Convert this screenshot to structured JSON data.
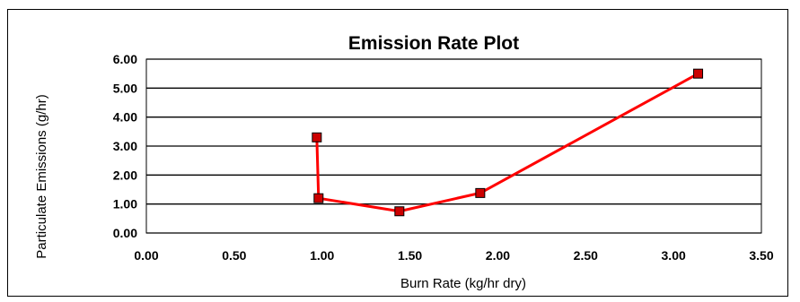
{
  "chart_data": {
    "type": "line",
    "title": "Emission Rate Plot",
    "xlabel": "Burn Rate (kg/hr dry)",
    "ylabel": "Particulate Emissions (g/hr)",
    "xlim": [
      0,
      3.5
    ],
    "ylim": [
      0,
      6
    ],
    "x_ticks": [
      "0.00",
      "0.50",
      "1.00",
      "1.50",
      "2.00",
      "2.50",
      "3.00",
      "3.50"
    ],
    "y_ticks": [
      "0.00",
      "1.00",
      "2.00",
      "3.00",
      "4.00",
      "5.00",
      "6.00"
    ],
    "grid": "horizontal",
    "legend": "none",
    "series": [
      {
        "color": "#ff0000",
        "marker_color": "#cc0000",
        "points": [
          {
            "x": 0.97,
            "y": 3.3
          },
          {
            "x": 0.98,
            "y": 1.2
          },
          {
            "x": 1.44,
            "y": 0.75
          },
          {
            "x": 1.9,
            "y": 1.38
          },
          {
            "x": 3.14,
            "y": 5.5
          }
        ]
      }
    ]
  }
}
